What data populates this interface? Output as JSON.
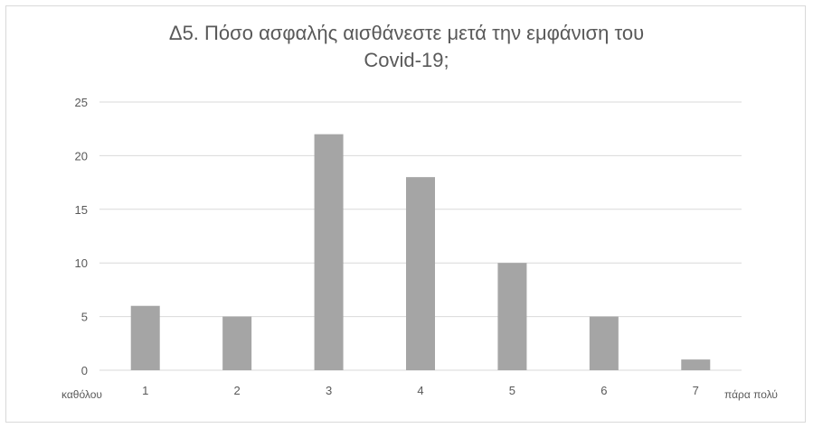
{
  "chart_data": {
    "type": "bar",
    "title": "Δ5. Πόσο ασφαλής αισθάνεστε μετά την εμφάνιση του Covid-19;",
    "title_lines": [
      "Δ5. Πόσο ασφαλής αισθάνεστε μετά την εμφάνιση του",
      "Covid-19;"
    ],
    "categories": [
      "1",
      "2",
      "3",
      "4",
      "5",
      "6",
      "7"
    ],
    "values": [
      6,
      5,
      22,
      18,
      10,
      5,
      1
    ],
    "ylim": [
      0,
      25
    ],
    "yticks": [
      "0",
      "5",
      "10",
      "15",
      "20",
      "25"
    ],
    "x_low_label": "καθόλου",
    "x_high_label": "πάρα πολύ",
    "grid": true,
    "colors": {
      "bar": "#a5a5a5",
      "grid": "#d9d9d9",
      "text": "#595959"
    }
  }
}
